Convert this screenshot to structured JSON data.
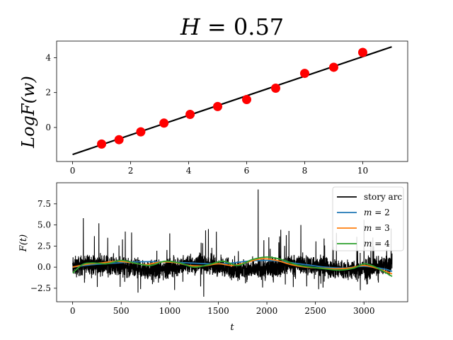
{
  "chart_data": [
    {
      "type": "scatter",
      "title": "H = 0.57",
      "title_parts": {
        "var": "H",
        "eq": " = ",
        "val": "0.57"
      },
      "ylabel": "LogF(w)",
      "xlabel": "",
      "xlim": [
        -0.55,
        11.55
      ],
      "ylim": [
        -1.95,
        4.95
      ],
      "xticks": [
        0,
        2,
        4,
        6,
        8,
        10
      ],
      "yticks": [
        0,
        2,
        4
      ],
      "colors": {
        "points": "#ff0000",
        "fit": "#000000"
      },
      "series": [
        {
          "name": "",
          "kind": "points",
          "x": [
            1.0,
            1.6,
            2.35,
            3.15,
            4.05,
            5.0,
            6.0,
            7.0,
            8.0,
            9.0,
            10.0
          ],
          "y": [
            -0.95,
            -0.7,
            -0.25,
            0.25,
            0.75,
            1.2,
            1.6,
            2.25,
            3.1,
            3.45,
            4.3
          ]
        },
        {
          "name": "",
          "kind": "fit_line",
          "x": [
            0,
            11
          ],
          "y": [
            -1.55,
            4.62
          ]
        }
      ]
    },
    {
      "type": "line",
      "title": "",
      "xlabel": "t",
      "ylabel": "F(t)",
      "xlim": [
        -165,
        3450
      ],
      "ylim": [
        -4.1,
        10.0
      ],
      "xticks": [
        0,
        500,
        1000,
        1500,
        2000,
        2500,
        3000
      ],
      "yticks": [
        -2.5,
        0.0,
        2.5,
        5.0,
        7.5
      ],
      "ytick_labels": [
        "−2.5",
        "0.0",
        "2.5",
        "5.0",
        "7.5"
      ],
      "legend": {
        "placement": "top-right",
        "entries": [
          {
            "label": "story arc",
            "color": "#000000"
          },
          {
            "label": "m = 2",
            "var": "m",
            "val": "2",
            "color": "#1f77b4"
          },
          {
            "label": "m = 3",
            "var": "m",
            "val": "3",
            "color": "#ff7f0e"
          },
          {
            "label": "m = 4",
            "var": "m",
            "val": "4",
            "color": "#2ca02c"
          }
        ]
      },
      "series": [
        {
          "name": "story arc",
          "kind": "noisy",
          "n_points": 3290,
          "spikes": [
            {
              "x": 110,
              "y": 5.8
            },
            {
              "x": 270,
              "y": 5.2
            },
            {
              "x": 1910,
              "y": 9.2
            },
            {
              "x": 1000,
              "y": 4.0
            },
            {
              "x": 2350,
              "y": 5.0
            },
            {
              "x": 3000,
              "y": 5.6
            },
            {
              "x": 1350,
              "y": -3.5
            },
            {
              "x": 1050,
              "y": -2.7
            },
            {
              "x": 700,
              "y": -2.6
            },
            {
              "x": 2200,
              "y": 3.8
            },
            {
              "x": 1480,
              "y": 4.2
            },
            {
              "x": 2680,
              "y": 3.2
            }
          ]
        },
        {
          "name": "m = 2",
          "x": [
            0,
            200,
            400,
            600,
            800,
            1000,
            1200,
            1400,
            1600,
            1800,
            2000,
            2200,
            2400,
            2600,
            2800,
            3000,
            3200,
            3290
          ],
          "y": [
            0.0,
            0.3,
            0.45,
            0.6,
            0.65,
            0.6,
            0.5,
            0.4,
            0.45,
            0.7,
            0.8,
            0.6,
            0.3,
            0.0,
            -0.1,
            0.1,
            -0.2,
            -0.5
          ]
        },
        {
          "name": "m = 3",
          "x": [
            0,
            150,
            300,
            450,
            600,
            750,
            900,
            1050,
            1200,
            1350,
            1500,
            1650,
            1800,
            1950,
            2100,
            2250,
            2400,
            2550,
            2700,
            2850,
            3000,
            3150,
            3290
          ],
          "y": [
            0.0,
            0.35,
            0.5,
            0.7,
            0.55,
            0.3,
            0.6,
            0.55,
            0.2,
            0.15,
            0.4,
            0.2,
            0.6,
            1.0,
            0.8,
            0.3,
            0.0,
            -0.1,
            -0.2,
            -0.1,
            0.2,
            -0.2,
            -0.8
          ]
        },
        {
          "name": "m = 4",
          "x": [
            0,
            100,
            200,
            350,
            500,
            650,
            800,
            950,
            1100,
            1250,
            1400,
            1550,
            1700,
            1850,
            2000,
            2150,
            2300,
            2450,
            2600,
            2750,
            2900,
            3000,
            3100,
            3200,
            3290
          ],
          "y": [
            -0.7,
            0.3,
            0.5,
            0.4,
            0.8,
            0.45,
            0.2,
            0.7,
            0.5,
            0.0,
            0.3,
            0.7,
            0.2,
            0.9,
            1.2,
            0.9,
            0.3,
            0.0,
            -0.2,
            -0.35,
            -0.1,
            0.4,
            0.1,
            -0.5,
            -1.1
          ]
        }
      ]
    }
  ]
}
